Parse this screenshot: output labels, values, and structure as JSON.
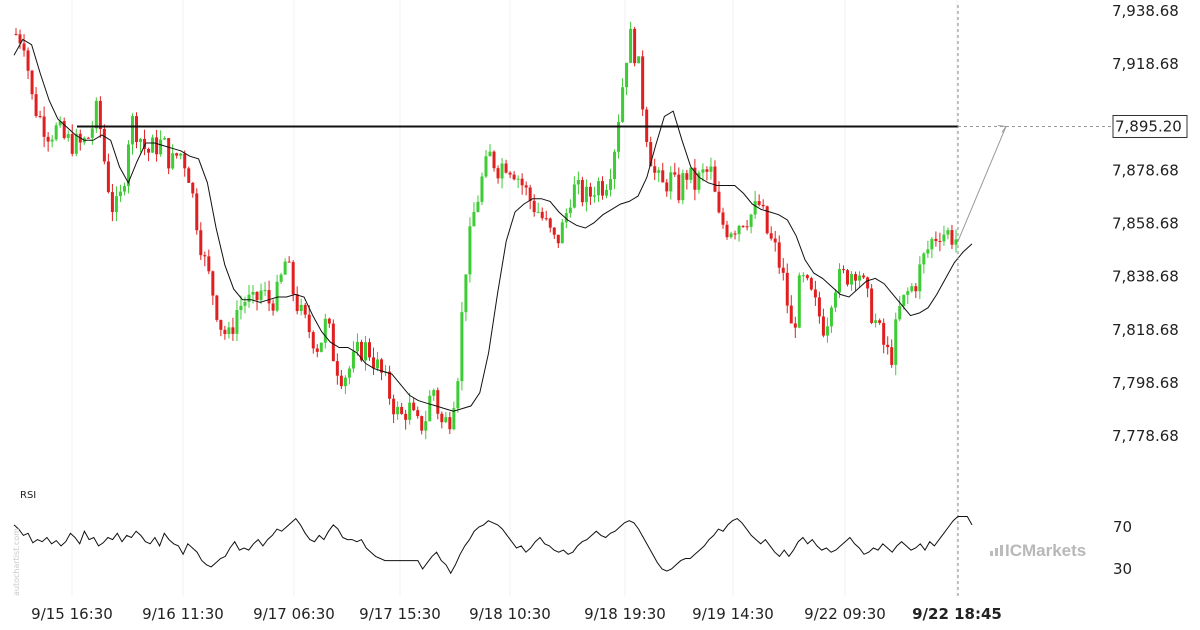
{
  "chart_data": {
    "type": "candlestick",
    "price_axis": {
      "ticks": [
        "7,938.68",
        "7,918.68",
        "7,878.68",
        "7,858.68",
        "7,838.68",
        "7,818.68",
        "7,798.68",
        "7,778.68"
      ],
      "tick_values": [
        7938.68,
        7918.68,
        7878.68,
        7858.68,
        7838.68,
        7818.68,
        7798.68,
        7778.68
      ],
      "ylim": [
        7772.0,
        7942.0
      ]
    },
    "time_axis": {
      "labels": [
        "9/15 16:30",
        "9/16 11:30",
        "9/17 06:30",
        "9/17 15:30",
        "9/18 10:30",
        "9/18 19:30",
        "9/19 14:30",
        "9/22 09:30",
        "9/22 18:45"
      ],
      "current_label": "9/22 18:45"
    },
    "resistance_level": {
      "value": 7895.2,
      "label": "7,895.20"
    },
    "projection_target": 7895.2,
    "close_path": [
      7930,
      7928,
      7905,
      7898,
      7893,
      7894,
      7890,
      7889,
      7888,
      7892,
      7902,
      7878,
      7862,
      7870,
      7898,
      7893,
      7885,
      7888,
      7889,
      7881,
      7886,
      7880,
      7862,
      7845,
      7834,
      7821,
      7815,
      7826,
      7830,
      7828,
      7833,
      7829,
      7832,
      7845,
      7832,
      7823,
      7818,
      7812,
      7822,
      7807,
      7801,
      7805,
      7811,
      7812,
      7806,
      7800,
      7792,
      7785,
      7790,
      7782,
      7784,
      7798,
      7783,
      7785,
      7801,
      7842,
      7862,
      7875,
      7884,
      7880,
      7882,
      7879,
      7873,
      7867,
      7863,
      7857,
      7851,
      7858,
      7872,
      7870,
      7868,
      7874,
      7873,
      7883,
      7906,
      7930,
      7921,
      7896,
      7878,
      7872,
      7876,
      7870,
      7878,
      7873,
      7877,
      7878,
      7860,
      7857,
      7858,
      7861,
      7862,
      7866,
      7854,
      7848,
      7836,
      7816,
      7838,
      7833,
      7826,
      7819,
      7836,
      7838,
      7840,
      7843,
      7831,
      7823,
      7814,
      7807,
      7825,
      7832,
      7836,
      7845,
      7852,
      7856,
      7855,
      7853
    ],
    "ma_values": [
      7922,
      7928,
      7926,
      7915,
      7905,
      7898,
      7895,
      7892,
      7890,
      7890,
      7892,
      7890,
      7880,
      7874,
      7882,
      7889,
      7889,
      7888,
      7887,
      7886,
      7884,
      7883,
      7874,
      7857,
      7843,
      7834,
      7830,
      7830,
      7829,
      7830,
      7831,
      7831,
      7832,
      7831,
      7824,
      7818,
      7814,
      7812,
      7812,
      7810,
      7806,
      7804,
      7803,
      7802,
      7798,
      7794,
      7792,
      7791,
      7790,
      7789,
      7788,
      7789,
      7790,
      7795,
      7810,
      7832,
      7852,
      7863,
      7866,
      7868,
      7868,
      7867,
      7863,
      7860,
      7858,
      7857,
      7859,
      7862,
      7864,
      7866,
      7867,
      7869,
      7876,
      7888,
      7899,
      7901,
      7890,
      7880,
      7876,
      7874,
      7873,
      7873,
      7873,
      7870,
      7866,
      7864,
      7863,
      7862,
      7860,
      7854,
      7845,
      7840,
      7838,
      7835,
      7832,
      7831,
      7834,
      7837,
      7838,
      7836,
      7832,
      7828,
      7824,
      7825,
      7827,
      7832,
      7838,
      7844,
      7848,
      7851
    ],
    "rsi": {
      "label": "RSI",
      "ticks": [
        "70",
        "30"
      ],
      "tick_values": [
        70,
        30
      ],
      "ylim": [
        20,
        82
      ],
      "values": [
        72,
        68,
        62,
        64,
        55,
        58,
        56,
        60,
        54,
        57,
        52,
        56,
        64,
        60,
        54,
        66,
        58,
        60,
        52,
        55,
        60,
        58,
        64,
        56,
        62,
        60,
        66,
        62,
        56,
        54,
        60,
        52,
        64,
        58,
        54,
        52,
        44,
        54,
        50,
        46,
        38,
        34,
        32,
        36,
        40,
        42,
        50,
        56,
        48,
        50,
        48,
        54,
        58,
        52,
        58,
        62,
        68,
        66,
        70,
        74,
        78,
        72,
        64,
        58,
        56,
        62,
        58,
        66,
        72,
        68,
        60,
        58,
        58,
        56,
        58,
        50,
        46,
        42,
        40,
        38,
        38,
        38,
        38,
        38,
        38,
        38,
        38,
        30,
        36,
        42,
        46,
        38,
        34,
        26,
        34,
        44,
        52,
        58,
        66,
        70,
        72,
        76,
        74,
        72,
        68,
        62,
        56,
        50,
        52,
        46,
        50,
        56,
        60,
        54,
        52,
        48,
        46,
        48,
        44,
        46,
        52,
        56,
        58,
        62,
        66,
        62,
        60,
        64,
        66,
        70,
        74,
        76,
        74,
        68,
        60,
        52,
        44,
        36,
        30,
        28,
        30,
        34,
        38,
        40,
        40,
        44,
        48,
        52,
        58,
        62,
        68,
        66,
        72,
        76,
        78,
        74,
        68,
        62,
        58,
        54,
        58,
        52,
        46,
        42,
        48,
        42,
        48,
        56,
        60,
        54,
        58,
        52,
        48,
        50,
        46,
        48,
        52,
        56,
        60,
        54,
        50,
        44,
        46,
        50,
        48,
        54,
        50,
        46,
        52,
        56,
        52,
        48,
        50,
        54,
        48,
        56,
        52,
        58,
        64,
        70,
        76,
        80,
        80,
        80,
        72
      ]
    }
  },
  "branding": {
    "logo_text": "ICMarkets"
  },
  "watermark": {
    "text": "autochartist.com"
  },
  "colors": {
    "up": "#3dcc35",
    "down": "#e02020",
    "ma": "#111111",
    "level": "#111111",
    "projection": "#999999"
  }
}
